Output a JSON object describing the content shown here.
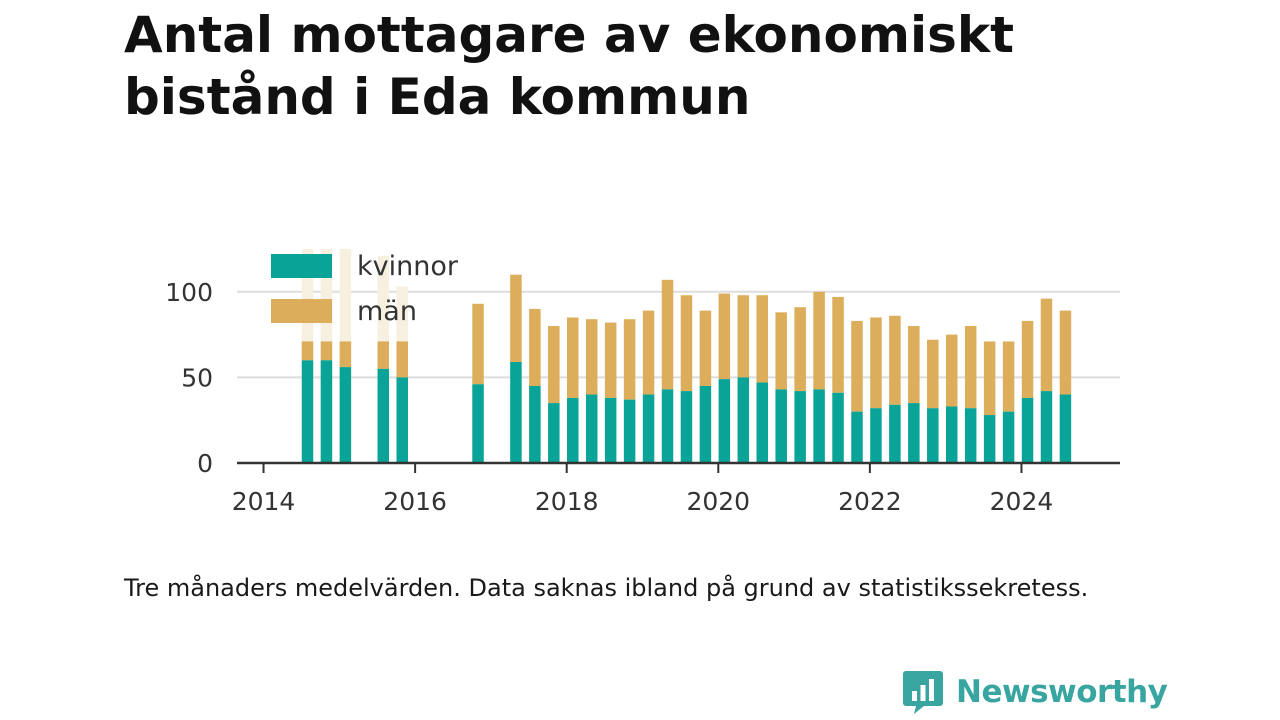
{
  "title": "Antal mottagare av ekonomiskt bistånd i Eda kommun",
  "note": "Tre månaders medelvärden. Data saknas ibland på grund av statistikssekretess.",
  "brand": {
    "name": "Newsworthy",
    "icon": "newsworthy-logo-icon"
  },
  "colors": {
    "kvinnor": "#0aa398",
    "man": "#dcad5a",
    "axis": "#333333",
    "grid": "#dddddd"
  },
  "chart_data": {
    "type": "bar",
    "stacked": true,
    "title": "Antal mottagare av ekonomiskt bistånd i Eda kommun",
    "xlabel": "",
    "ylabel": "",
    "xlim": [
      2013.65,
      2025.3
    ],
    "ylim": [
      0,
      125
    ],
    "yticks": [
      0,
      50,
      100
    ],
    "xticks": [
      "2014",
      "2016",
      "2018",
      "2020",
      "2022",
      "2024"
    ],
    "grid": true,
    "legend": "top-left",
    "x": [
      2014.58,
      2014.83,
      2015.08,
      2015.58,
      2015.83,
      2016.83,
      2017.33,
      2017.58,
      2017.83,
      2018.08,
      2018.33,
      2018.58,
      2018.83,
      2019.08,
      2019.33,
      2019.58,
      2019.83,
      2020.08,
      2020.33,
      2020.58,
      2020.83,
      2021.08,
      2021.33,
      2021.58,
      2021.83,
      2022.08,
      2022.33,
      2022.58,
      2022.83,
      2023.08,
      2023.33,
      2023.58,
      2023.83,
      2024.08,
      2024.33,
      2024.58
    ],
    "series": [
      {
        "name": "kvinnor",
        "values": [
          60,
          60,
          56,
          55,
          50,
          46,
          59,
          45,
          35,
          38,
          40,
          38,
          37,
          40,
          43,
          42,
          45,
          49,
          50,
          47,
          43,
          42,
          43,
          41,
          30,
          32,
          34,
          35,
          32,
          33,
          32,
          28,
          30,
          38,
          42,
          40
        ]
      },
      {
        "name": "män",
        "values": [
          11,
          11,
          15,
          16,
          21,
          47,
          51,
          45,
          45,
          47,
          44,
          44,
          47,
          49,
          64,
          56,
          44,
          50,
          48,
          51,
          45,
          49,
          57,
          56,
          53,
          53,
          52,
          45,
          40,
          42,
          48,
          43,
          41,
          45,
          54,
          49
        ]
      }
    ],
    "obscured_total": [
      125,
      125,
      125,
      121,
      103
    ]
  }
}
